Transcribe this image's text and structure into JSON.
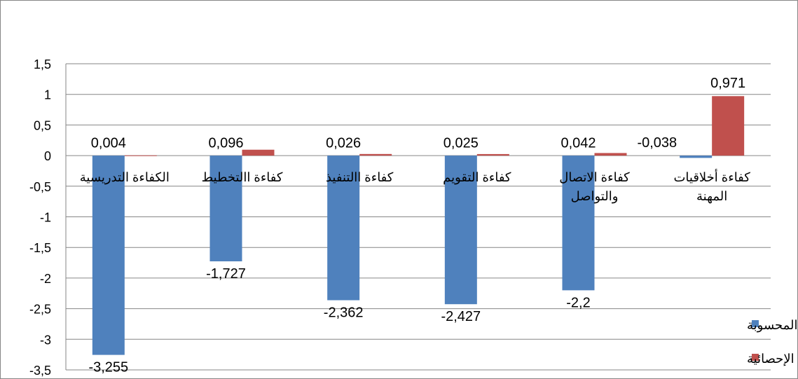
{
  "chart_data": {
    "type": "bar",
    "categories": [
      [
        "الكفاءة التدريسية"
      ],
      [
        "كفاءة االتخطيط"
      ],
      [
        "كفاءة االتنفيذ"
      ],
      [
        "كفاءة التقويم"
      ],
      [
        "كفاءة الاتصال",
        "والتواصل"
      ],
      [
        "كفاءة أخلاقيات",
        "المهنة"
      ]
    ],
    "series": [
      {
        "name": "ت المحسوبة",
        "color": "#4f81bd",
        "values": [
          -3.255,
          -1.727,
          -2.362,
          -2.427,
          -2.2,
          -0.038
        ],
        "labels": [
          "-3,255",
          "-1,727",
          "-2,362",
          "-2,427",
          "-2,2",
          "-0,038"
        ]
      },
      {
        "name": "الدلالة الإحصائية",
        "color": "#c0504d",
        "values": [
          0.004,
          0.096,
          0.026,
          0.025,
          0.042,
          0.971
        ],
        "labels": [
          "0,004",
          "0,096",
          "0,026",
          "0,025",
          "0,042",
          "0,971"
        ]
      }
    ],
    "ylim": [
      -3.5,
      1.5
    ],
    "yticks": [
      1.5,
      1,
      0.5,
      0,
      -0.5,
      -1,
      -1.5,
      -2,
      -2.5,
      -3,
      -3.5
    ],
    "ytick_labels": [
      "1,5",
      "1",
      "0,5",
      "0",
      "-0,5",
      "-1",
      "-1,5",
      "-2",
      "-2,5",
      "-3",
      "-3,5"
    ],
    "grid": true,
    "legend_position": "bottom-right",
    "title": "",
    "xlabel": "",
    "ylabel": ""
  }
}
